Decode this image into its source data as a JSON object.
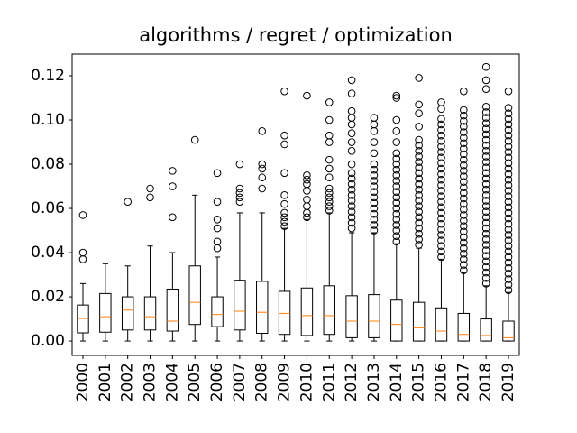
{
  "chart_data": {
    "type": "box",
    "title": "algorithms / regret / optimization",
    "categories": [
      "2000",
      "2001",
      "2002",
      "2003",
      "2004",
      "2005",
      "2006",
      "2007",
      "2008",
      "2009",
      "2010",
      "2011",
      "2012",
      "2013",
      "2014",
      "2015",
      "2016",
      "2017",
      "2018",
      "2019"
    ],
    "ylim": [
      -0.0065,
      0.1298
    ],
    "yticks": [
      {
        "value": 0,
        "label": "0.00"
      },
      0.02,
      0.04,
      0.06,
      0.08,
      {
        "value": 0.1,
        "label": "0.10"
      },
      0.12
    ],
    "box_color": "#000000",
    "median_color": "#ff7f0e",
    "boxes": [
      {
        "whislo": 0,
        "q1": 0.0037,
        "med": 0.0102,
        "q3": 0.0163,
        "whishi": 0.026,
        "fliers": [
          0.037,
          0.04,
          0.057
        ]
      },
      {
        "whislo": 0,
        "q1": 0.004,
        "med": 0.011,
        "q3": 0.0215,
        "whishi": 0.035,
        "fliers": []
      },
      {
        "whislo": 0,
        "q1": 0.005,
        "med": 0.014,
        "q3": 0.02,
        "whishi": 0.034,
        "fliers": [
          0.063
        ]
      },
      {
        "whislo": 0,
        "q1": 0.005,
        "med": 0.011,
        "q3": 0.02,
        "whishi": 0.043,
        "fliers": [
          0.065,
          0.069
        ]
      },
      {
        "whislo": 0,
        "q1": 0.0045,
        "med": 0.009,
        "q3": 0.0235,
        "whishi": 0.04,
        "fliers": [
          0.056,
          0.07,
          0.077
        ]
      },
      {
        "whislo": 0,
        "q1": 0.0075,
        "med": 0.0175,
        "q3": 0.034,
        "whishi": 0.066,
        "fliers": [
          0.091
        ]
      },
      {
        "whislo": 0,
        "q1": 0.0065,
        "med": 0.012,
        "q3": 0.02,
        "whishi": 0.038,
        "fliers": [
          0.042,
          0.045,
          0.051,
          0.055,
          0.063,
          0.076
        ]
      },
      {
        "whislo": 0,
        "q1": 0.005,
        "med": 0.0135,
        "q3": 0.0275,
        "whishi": 0.058,
        "fliers": [
          0.063,
          0.065,
          0.067,
          0.069,
          0.08
        ]
      },
      {
        "whislo": 0,
        "q1": 0.0035,
        "med": 0.013,
        "q3": 0.027,
        "whishi": 0.058,
        "fliers": [
          0.069,
          0.074,
          0.078,
          0.08,
          0.095
        ]
      },
      {
        "whislo": 0,
        "q1": 0.003,
        "med": 0.0125,
        "q3": 0.0225,
        "whishi": 0.051,
        "fliers": [
          0.052,
          0.054,
          0.056,
          0.058,
          0.062,
          0.066,
          0.076,
          0.089,
          0.093,
          0.113
        ]
      },
      {
        "whislo": 0,
        "q1": 0.0025,
        "med": 0.0115,
        "q3": 0.024,
        "whishi": 0.055,
        "fliers": [
          0.056,
          0.058,
          0.061,
          0.064,
          0.068,
          0.071,
          0.073,
          0.075,
          0.111
        ]
      },
      {
        "whislo": 0,
        "q1": 0.003,
        "med": 0.0115,
        "q3": 0.025,
        "whishi": 0.058,
        "fliers": [
          0.059,
          0.061,
          0.063,
          0.065,
          0.067,
          0.069,
          0.074,
          0.078,
          0.082,
          0.09,
          0.093,
          0.1,
          0.108
        ]
      },
      {
        "whislo": 0,
        "q1": 0.0015,
        "med": 0.009,
        "q3": 0.0205,
        "whishi": 0.049,
        "fliers": [
          0.051,
          0.0535,
          0.056,
          0.0585,
          0.061,
          0.0635,
          0.066,
          0.0685,
          0.071,
          0.0735,
          0.076,
          0.08,
          0.086,
          0.09,
          0.094,
          0.098,
          0.101,
          0.104,
          0.112,
          0.118
        ]
      },
      {
        "whislo": 0,
        "q1": 0.0015,
        "med": 0.009,
        "q3": 0.021,
        "whishi": 0.049,
        "fliers": [
          0.05,
          0.0525,
          0.055,
          0.0575,
          0.06,
          0.0625,
          0.065,
          0.0675,
          0.07,
          0.0725,
          0.075,
          0.0775,
          0.08,
          0.085,
          0.09,
          0.095,
          0.098,
          0.101
        ]
      },
      {
        "whislo": 0,
        "q1": 0,
        "med": 0.0075,
        "q3": 0.0185,
        "whishi": 0.044,
        "fliers": [
          0.045,
          0.0475,
          0.05,
          0.0525,
          0.055,
          0.0575,
          0.06,
          0.0625,
          0.065,
          0.0675,
          0.07,
          0.0725,
          0.075,
          0.0775,
          0.08,
          0.0825,
          0.085,
          0.09,
          0.095,
          0.1,
          0.11,
          0.111
        ]
      },
      {
        "whislo": 0,
        "q1": 0,
        "med": 0.006,
        "q3": 0.0175,
        "whishi": 0.042,
        "fliers": [
          0.0435,
          0.046,
          0.0485,
          0.051,
          0.0535,
          0.056,
          0.0585,
          0.061,
          0.0635,
          0.066,
          0.0685,
          0.071,
          0.0735,
          0.076,
          0.0785,
          0.081,
          0.0835,
          0.086,
          0.0885,
          0.091,
          0.097,
          0.103,
          0.107,
          0.119
        ]
      },
      {
        "whislo": 0,
        "q1": 0,
        "med": 0.0045,
        "q3": 0.015,
        "whishi": 0.037,
        "fliers": [
          0.038,
          0.0405,
          0.043,
          0.0455,
          0.048,
          0.0505,
          0.053,
          0.0555,
          0.058,
          0.0605,
          0.063,
          0.0655,
          0.068,
          0.0705,
          0.073,
          0.0755,
          0.078,
          0.0805,
          0.083,
          0.0855,
          0.088,
          0.0905,
          0.093,
          0.0955,
          0.098,
          0.1005,
          0.105,
          0.108
        ]
      },
      {
        "whislo": 0,
        "q1": 0,
        "med": 0.003,
        "q3": 0.0125,
        "whishi": 0.031,
        "fliers": [
          0.032,
          0.0345,
          0.037,
          0.0395,
          0.042,
          0.0445,
          0.047,
          0.0495,
          0.052,
          0.0545,
          0.057,
          0.0595,
          0.062,
          0.0645,
          0.067,
          0.0695,
          0.072,
          0.0745,
          0.077,
          0.0795,
          0.082,
          0.0845,
          0.087,
          0.0895,
          0.092,
          0.0945,
          0.097,
          0.0995,
          0.102,
          0.1045,
          0.113
        ]
      },
      {
        "whislo": 0,
        "q1": 0,
        "med": 0.0025,
        "q3": 0.01,
        "whishi": 0.025,
        "fliers": [
          0.026,
          0.0285,
          0.031,
          0.0335,
          0.036,
          0.0385,
          0.041,
          0.0435,
          0.046,
          0.0485,
          0.051,
          0.0535,
          0.056,
          0.0585,
          0.061,
          0.0635,
          0.066,
          0.0685,
          0.071,
          0.0735,
          0.076,
          0.0785,
          0.081,
          0.0835,
          0.086,
          0.0885,
          0.091,
          0.0935,
          0.096,
          0.0985,
          0.101,
          0.1035,
          0.106,
          0.114,
          0.118,
          0.124
        ]
      },
      {
        "whislo": 0,
        "q1": 0,
        "med": 0.0015,
        "q3": 0.009,
        "whishi": 0.022,
        "fliers": [
          0.023,
          0.0255,
          0.028,
          0.0305,
          0.033,
          0.0355,
          0.038,
          0.0405,
          0.043,
          0.0455,
          0.048,
          0.0505,
          0.053,
          0.0555,
          0.058,
          0.0605,
          0.063,
          0.0655,
          0.068,
          0.0705,
          0.073,
          0.0755,
          0.078,
          0.0805,
          0.083,
          0.0855,
          0.088,
          0.0905,
          0.093,
          0.0955,
          0.098,
          0.1005,
          0.103,
          0.1055,
          0.113
        ]
      }
    ]
  }
}
